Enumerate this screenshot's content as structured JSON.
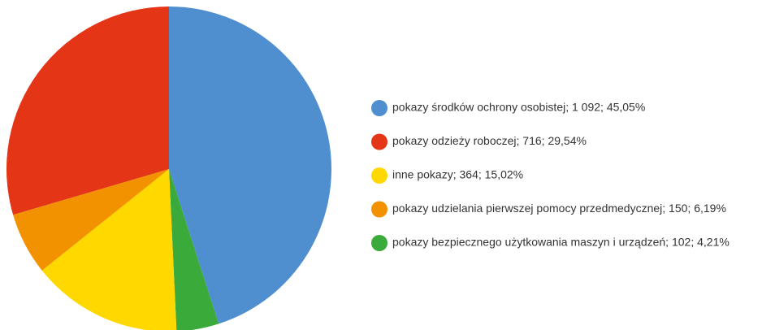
{
  "chart_data": {
    "type": "pie",
    "categories": [
      "pokazy środków ochrony osobistej; 1 092; 45,05%",
      "pokazy bezpiecznego użytkowania maszyn i urządzeń; 102; 4,21%",
      "inne pokazy; 364; 15,02%",
      "pokazy udzielania pierwszej pomocy przedmedycznej; 150; 6,19%",
      "pokazy odzieży roboczej; 716; 29,54%"
    ],
    "values": [
      1092,
      102,
      364,
      150,
      716
    ],
    "colors": [
      "#4f8fd0",
      "#3aaa3a",
      "#ffd800",
      "#f39200",
      "#e53517"
    ]
  }
}
